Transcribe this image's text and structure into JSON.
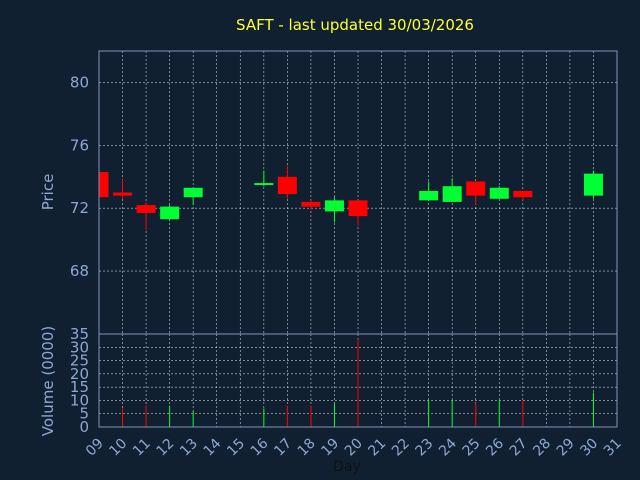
{
  "chart_data": {
    "type": "candlestick",
    "title": "SAFT - last updated 30/03/2026",
    "xlabel": "Day",
    "ylabel_price": "Price",
    "ylabel_volume": "Volume (0000)",
    "x_tick_labels": [
      "09",
      "10",
      "11",
      "12",
      "13",
      "14",
      "15",
      "16",
      "17",
      "18",
      "19",
      "20",
      "21",
      "22",
      "23",
      "24",
      "25",
      "26",
      "27",
      "28",
      "29",
      "30",
      "31"
    ],
    "price_ticks": [
      68,
      72,
      76,
      80
    ],
    "price_ylim": [
      64,
      82
    ],
    "volume_ticks": [
      0,
      5,
      10,
      15,
      20,
      25,
      30,
      35
    ],
    "volume_ylim": [
      0,
      35
    ],
    "colors": {
      "up": "#00ff33",
      "down": "#ff0000",
      "background": "#102031",
      "title": "#ffff33",
      "axis_text": "#8fa8d0"
    },
    "candles": [
      {
        "day": 9,
        "open": 74.3,
        "high": 74.3,
        "low": 72.6,
        "close": 72.7,
        "volume": 0
      },
      {
        "day": 10,
        "open": 73.0,
        "high": 73.9,
        "low": 72.6,
        "close": 72.8,
        "volume": 7
      },
      {
        "day": 11,
        "open": 72.2,
        "high": 72.4,
        "low": 70.6,
        "close": 71.7,
        "volume": 8
      },
      {
        "day": 12,
        "open": 71.3,
        "high": 72.2,
        "low": 71.3,
        "close": 72.1,
        "volume": 8
      },
      {
        "day": 13,
        "open": 72.7,
        "high": 73.3,
        "low": 72.2,
        "close": 73.3,
        "volume": 6
      },
      {
        "day": 16,
        "open": 73.5,
        "high": 74.4,
        "low": 73.4,
        "close": 73.6,
        "volume": 7
      },
      {
        "day": 17,
        "open": 74.0,
        "high": 74.7,
        "low": 72.6,
        "close": 72.9,
        "volume": 8
      },
      {
        "day": 18,
        "open": 72.4,
        "high": 72.5,
        "low": 71.9,
        "close": 72.1,
        "volume": 8
      },
      {
        "day": 19,
        "open": 71.8,
        "high": 72.7,
        "low": 71.1,
        "close": 72.5,
        "volume": 9
      },
      {
        "day": 20,
        "open": 72.5,
        "high": 72.5,
        "low": 70.9,
        "close": 71.5,
        "volume": 33
      },
      {
        "day": 23,
        "open": 72.5,
        "high": 73.7,
        "low": 72.5,
        "close": 73.1,
        "volume": 10
      },
      {
        "day": 24,
        "open": 72.4,
        "high": 73.9,
        "low": 72.4,
        "close": 73.4,
        "volume": 10
      },
      {
        "day": 25,
        "open": 73.7,
        "high": 73.7,
        "low": 72.2,
        "close": 72.8,
        "volume": 9
      },
      {
        "day": 26,
        "open": 72.6,
        "high": 73.4,
        "low": 72.6,
        "close": 73.3,
        "volume": 10
      },
      {
        "day": 27,
        "open": 73.1,
        "high": 73.1,
        "low": 72.5,
        "close": 72.7,
        "volume": 10
      },
      {
        "day": 30,
        "open": 72.8,
        "high": 74.4,
        "low": 72.6,
        "close": 74.2,
        "volume": 13
      }
    ]
  }
}
